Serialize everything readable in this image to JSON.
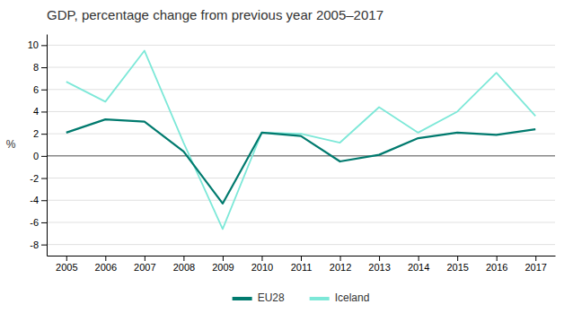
{
  "chart_data": {
    "type": "line",
    "title": "GDP, percentage change from previous year 2005–2017",
    "ylabel": "%",
    "x": [
      2005,
      2006,
      2007,
      2008,
      2009,
      2010,
      2011,
      2012,
      2013,
      2014,
      2015,
      2016,
      2017
    ],
    "series": [
      {
        "name": "EU28",
        "color": "#007a6e",
        "values": [
          2.1,
          3.3,
          3.1,
          0.4,
          -4.3,
          2.1,
          1.8,
          -0.5,
          0.1,
          1.6,
          2.1,
          1.9,
          2.4
        ]
      },
      {
        "name": "Iceland",
        "color": "#7de8d8",
        "values": [
          6.7,
          4.9,
          9.5,
          1.2,
          -6.6,
          2.1,
          2.0,
          1.2,
          4.4,
          2.1,
          4.0,
          7.5,
          3.6
        ]
      }
    ],
    "xlim": [
      2004.5,
      2017.5
    ],
    "xticks": [
      2005,
      2006,
      2007,
      2008,
      2009,
      2010,
      2011,
      2012,
      2013,
      2014,
      2015,
      2016,
      2017
    ],
    "ylim": [
      -9,
      11
    ],
    "yticks": [
      -8,
      -6,
      -4,
      -2,
      0,
      2,
      4,
      6,
      8,
      10
    ],
    "grid": true,
    "legend": "bottom"
  }
}
